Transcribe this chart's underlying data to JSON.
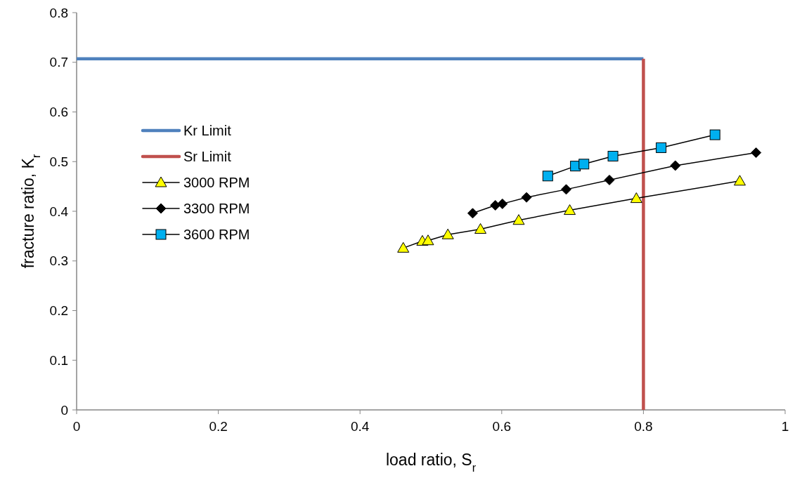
{
  "chart_data": {
    "type": "line",
    "xlabel": "load ratio, S$_{r}$",
    "ylabel": "fracture ratio, K$_{r}$",
    "xlim": [
      0,
      1
    ],
    "ylim": [
      0,
      0.8
    ],
    "xticks": [
      0,
      0.2,
      0.4,
      0.6,
      0.8,
      1
    ],
    "yticks": [
      0,
      0.1,
      0.2,
      0.3,
      0.4,
      0.5,
      0.6,
      0.7,
      0.8
    ],
    "grid": false,
    "legend": "left",
    "series": [
      {
        "name": "Kr Limit",
        "color": "#4f81bd",
        "marker": "none",
        "x": [
          0,
          0.8
        ],
        "values": [
          0.707,
          0.707
        ]
      },
      {
        "name": "Sr Limit",
        "color": "#c0504d",
        "marker": "none",
        "x": [
          0.8,
          0.8
        ],
        "values": [
          0,
          0.707
        ]
      },
      {
        "name": "3000 RPM",
        "color": "#ffff00",
        "marker": "triangle",
        "x": [
          0.461,
          0.488,
          0.496,
          0.524,
          0.57,
          0.624,
          0.696,
          0.79,
          0.936
        ],
        "values": [
          0.326,
          0.34,
          0.341,
          0.353,
          0.364,
          0.382,
          0.402,
          0.426,
          0.461
        ]
      },
      {
        "name": "3300 RPM",
        "color": "#000000",
        "marker": "diamond",
        "x": [
          0.559,
          0.591,
          0.601,
          0.635,
          0.691,
          0.752,
          0.845,
          0.959
        ],
        "values": [
          0.396,
          0.412,
          0.415,
          0.428,
          0.444,
          0.463,
          0.492,
          0.518
        ]
      },
      {
        "name": "3600 RPM",
        "color": "#00b0f0",
        "marker": "square",
        "x": [
          0.665,
          0.704,
          0.716,
          0.757,
          0.825,
          0.901
        ],
        "values": [
          0.471,
          0.491,
          0.495,
          0.511,
          0.528,
          0.554
        ]
      }
    ]
  }
}
